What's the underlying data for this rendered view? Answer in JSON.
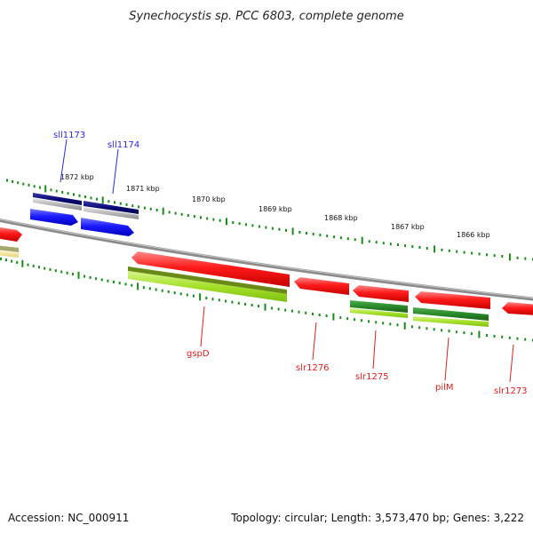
{
  "title": "Synechocystis sp. PCC 6803, complete genome",
  "ticks": [
    "1872 kbp",
    "1871 kbp",
    "1870 kbp",
    "1869 kbp",
    "1868 kbp",
    "1867 kbp",
    "1866 kbp"
  ],
  "genes": {
    "sll1173": "sll1173",
    "sll1174": "sll1174",
    "gspD": "gspD",
    "slr1276": "slr1276",
    "slr1275": "slr1275",
    "pilM": "pilM",
    "slr1273": "slr1273"
  },
  "footer": {
    "accession": "Accession: NC_000911",
    "summary": "Topology: circular; Length: 3,573,470 bp; Genes: 3,222"
  },
  "colors": {
    "backbone": "#8a8a8a",
    "tick": "#1a8a1a",
    "forward_cds": "#ff1a1a",
    "forward_gene": "#a6e02a",
    "forward_gene_dark": "#2a8a2a",
    "reverse_cds": "#1a1aff",
    "reverse_gene": "#0a0a78",
    "reverse_gene_grey": "#b8b8b8",
    "label_blue": "#2a2ad8",
    "label_red": "#d82020"
  }
}
